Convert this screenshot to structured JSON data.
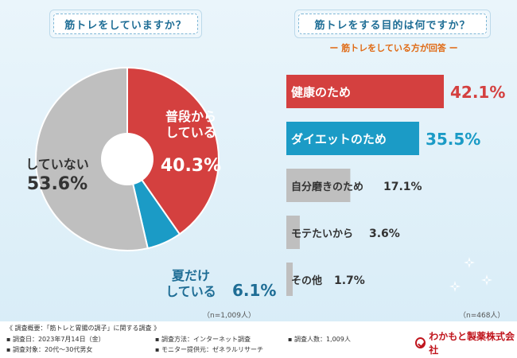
{
  "left_title": "筋トレをしていますか？",
  "right_title": "筋トレをする目的は何ですか？",
  "right_subtitle": "ー 筋トレをしている方が回答 ー",
  "left_n": "（n=1,009人）",
  "right_n": "（n=468人）",
  "chart_data": [
    {
      "type": "pie",
      "title": "筋トレをしていますか？",
      "slices": [
        {
          "label_lines": [
            "普段から",
            "している"
          ],
          "value": 40.3,
          "value_text": "40.3%",
          "color": "#d4403f"
        },
        {
          "label_lines": [
            "夏だけ",
            "している"
          ],
          "value": 6.1,
          "value_text": "6.1%",
          "color": "#1b9bc6"
        },
        {
          "label_lines": [
            "していない"
          ],
          "value": 53.6,
          "value_text": "53.6%",
          "color": "#bfbfbf"
        }
      ]
    },
    {
      "type": "bar",
      "title": "筋トレをする目的は何ですか？",
      "categories": [
        "健康のため",
        "ダイエットのため",
        "自分磨きのため",
        "モテたいから",
        "その他"
      ],
      "values": [
        42.1,
        35.5,
        17.1,
        3.6,
        1.7
      ],
      "value_texts": [
        "42.1%",
        "35.5%",
        "17.1%",
        "3.6%",
        "1.7%"
      ],
      "colors": [
        "#d4403f",
        "#1b9bc6",
        "#bfbfbf",
        "#bfbfbf",
        "#bfbfbf"
      ],
      "xlim": [
        0,
        42.1
      ]
    }
  ],
  "footer": {
    "summary": "《 調査概要：「筋トレと胃腸の調子」に関する調査 》",
    "date": "▪ 調査日：2023年7月14日（金）",
    "target": "▪ 調査対象：20代〜30代男女",
    "method": "▪ 調査方法：インターネット調査",
    "provider": "▪ モニター提供元：ゼネラルリサーチ",
    "count": "▪ 調査人数：1,009人",
    "company": "わかもと製薬株式会社"
  }
}
